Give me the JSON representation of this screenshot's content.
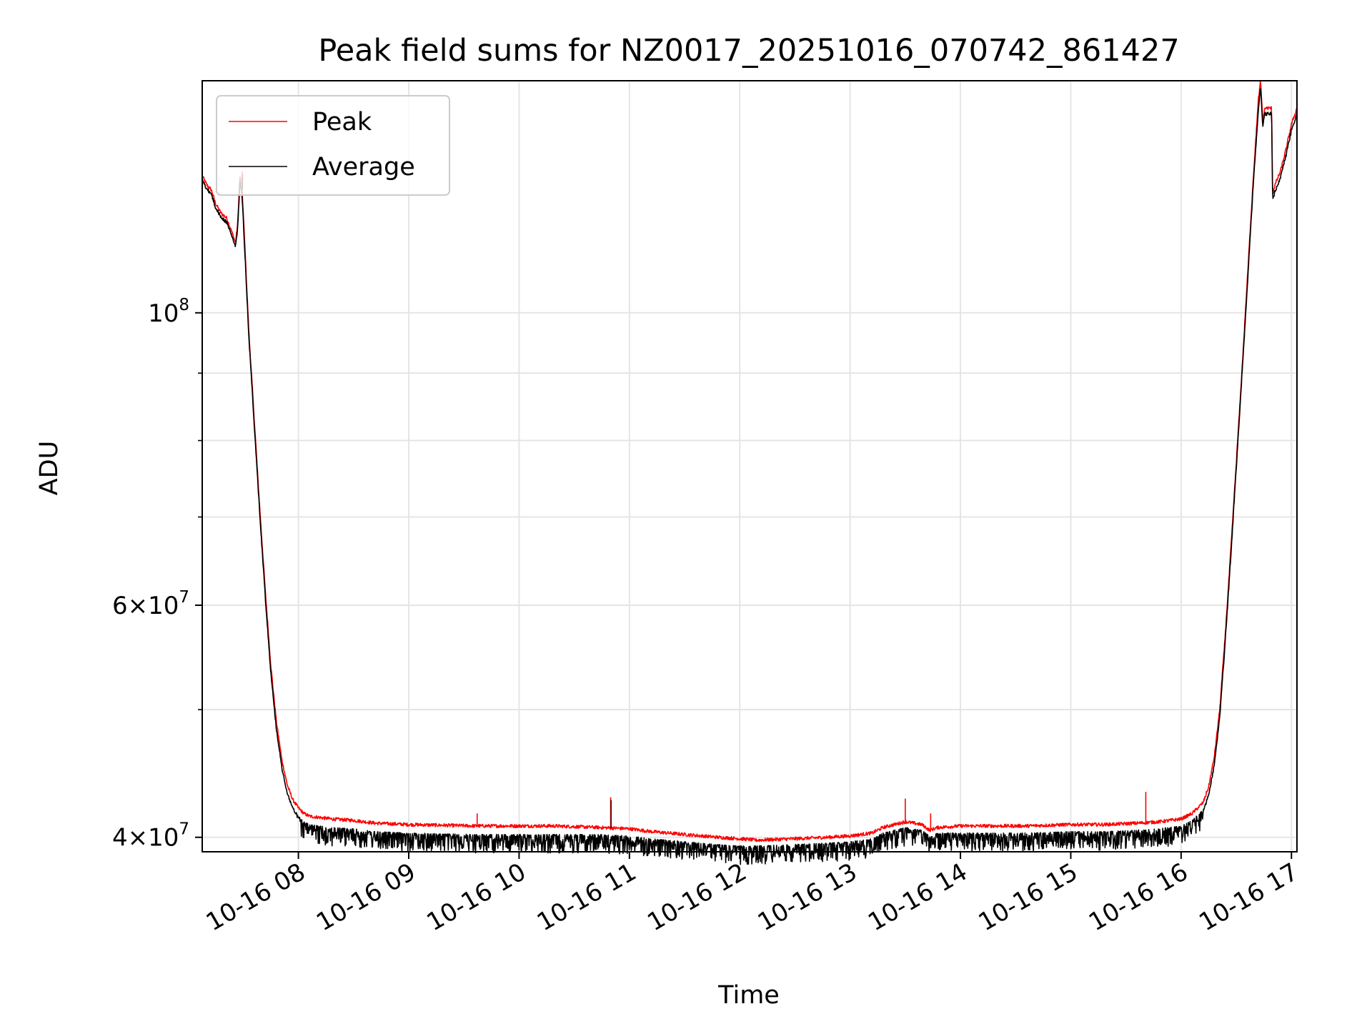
{
  "chart_data": {
    "type": "line",
    "title": "Peak field sums for NZ0017_20251016_070742_861427",
    "xlabel": "Time",
    "ylabel": "ADU",
    "yscale": "log",
    "ylim": [
      39000000,
      150000000
    ],
    "xlim_hours": [
      7.1283,
      17.05
    ],
    "grid": true,
    "legend_location": "upper left",
    "x_ticks": [
      {
        "hour": 8,
        "label": "10-16 08"
      },
      {
        "hour": 9,
        "label": "10-16 09"
      },
      {
        "hour": 10,
        "label": "10-16 10"
      },
      {
        "hour": 11,
        "label": "10-16 11"
      },
      {
        "hour": 12,
        "label": "10-16 12"
      },
      {
        "hour": 13,
        "label": "10-16 13"
      },
      {
        "hour": 14,
        "label": "10-16 14"
      },
      {
        "hour": 15,
        "label": "10-16 15"
      },
      {
        "hour": 16,
        "label": "10-16 16"
      },
      {
        "hour": 17,
        "label": "10-16 17"
      }
    ],
    "y_ticks_major": [
      {
        "value": 40000000,
        "mantissa": "4",
        "exp": "7"
      },
      {
        "value": 60000000,
        "mantissa": "6",
        "exp": "7"
      },
      {
        "value": 100000000,
        "mantissa": "",
        "exp": "8"
      }
    ],
    "y_ticks_minor": [
      50000000,
      70000000,
      80000000,
      90000000
    ],
    "series": [
      {
        "name": "Peak",
        "color": "#ff0000",
        "noise": "low",
        "hours": [
          7.13,
          7.17,
          7.21,
          7.25,
          7.3,
          7.35,
          7.4,
          7.43,
          7.45,
          7.47,
          7.49,
          7.52,
          7.55,
          7.6,
          7.65,
          7.7,
          7.75,
          7.8,
          7.85,
          7.9,
          7.95,
          8.0,
          8.05,
          8.1,
          8.3,
          8.5,
          8.7,
          9.0,
          9.3,
          9.6,
          10.0,
          10.3,
          10.7,
          11.0,
          11.2,
          11.5,
          11.8,
          12.0,
          12.15,
          12.5,
          12.8,
          13.0,
          13.2,
          13.3,
          13.5,
          13.65,
          13.72,
          13.8,
          14.0,
          14.3,
          14.6,
          15.0,
          15.3,
          15.6,
          15.8,
          16.0,
          16.1,
          16.2,
          16.25,
          16.3,
          16.35,
          16.4,
          16.45,
          16.5,
          16.55,
          16.6,
          16.65,
          16.7,
          16.72,
          16.74,
          16.76,
          16.78,
          16.8,
          16.82,
          16.83,
          16.85,
          16.9,
          16.95,
          17.0,
          17.05
        ],
        "values": [
          127000000,
          125000000,
          124000000,
          121000000,
          119000000,
          118000000,
          115000000,
          113000000,
          117000000,
          127000000,
          124000000,
          110000000,
          97000000,
          83000000,
          71000000,
          61500000,
          54000000,
          49000000,
          45800000,
          43800000,
          42700000,
          42100000,
          41700000,
          41500000,
          41300000,
          41200000,
          41000000,
          40900000,
          40850000,
          40800000,
          40800000,
          40800000,
          40700000,
          40600000,
          40400000,
          40200000,
          40000000,
          39900000,
          39800000,
          39900000,
          40000000,
          40100000,
          40300000,
          40700000,
          41100000,
          40900000,
          40500000,
          40700000,
          40800000,
          40800000,
          40800000,
          40900000,
          40900000,
          41000000,
          41100000,
          41300000,
          41700000,
          42500000,
          43700000,
          46000000,
          50000000,
          57000000,
          66000000,
          77000000,
          90000000,
          106000000,
          125000000,
          145000000,
          150000000,
          140000000,
          143000000,
          143000000,
          143000000,
          143000000,
          123000000,
          125000000,
          128000000,
          133000000,
          139000000,
          143000000
        ]
      },
      {
        "name": "Average",
        "color": "#000000",
        "noise": "high",
        "hours": [
          7.13,
          7.17,
          7.21,
          7.25,
          7.3,
          7.35,
          7.4,
          7.43,
          7.45,
          7.47,
          7.49,
          7.52,
          7.55,
          7.6,
          7.65,
          7.7,
          7.75,
          7.8,
          7.85,
          7.9,
          7.95,
          8.0,
          8.05,
          8.1,
          8.3,
          8.5,
          8.7,
          9.0,
          9.3,
          9.6,
          10.0,
          10.3,
          10.7,
          11.0,
          11.2,
          11.5,
          11.8,
          12.0,
          12.15,
          12.5,
          12.8,
          13.0,
          13.2,
          13.3,
          13.5,
          13.65,
          13.72,
          13.8,
          14.0,
          14.3,
          14.6,
          15.0,
          15.3,
          15.6,
          15.8,
          16.0,
          16.1,
          16.2,
          16.25,
          16.3,
          16.35,
          16.4,
          16.45,
          16.5,
          16.55,
          16.6,
          16.65,
          16.7,
          16.72,
          16.74,
          16.76,
          16.78,
          16.8,
          16.82,
          16.83,
          16.85,
          16.9,
          16.95,
          17.0,
          17.05
        ],
        "values": [
          126500000,
          124500000,
          123500000,
          120500000,
          118500000,
          117500000,
          114500000,
          112500000,
          116500000,
          126000000,
          123000000,
          109000000,
          96500000,
          82500000,
          70500000,
          61000000,
          53500000,
          48500000,
          45300000,
          43300000,
          42200000,
          41500000,
          41100000,
          40900000,
          40700000,
          40600000,
          40400000,
          40300000,
          40250000,
          40200000,
          40200000,
          40200000,
          40200000,
          40100000,
          39900000,
          39700000,
          39500000,
          39400000,
          39400000,
          39500000,
          39600000,
          39700000,
          39900000,
          40300000,
          40700000,
          40500000,
          40100000,
          40300000,
          40300000,
          40300000,
          40300000,
          40400000,
          40400000,
          40500000,
          40600000,
          40800000,
          41200000,
          42000000,
          43200000,
          45500000,
          49500000,
          56500000,
          65500000,
          76500000,
          89500000,
          105000000,
          124000000,
          143000000,
          149000000,
          139000000,
          142000000,
          142000000,
          142000000,
          142000000,
          122000000,
          124000000,
          127000000,
          132000000,
          138000000,
          142000000
        ]
      }
    ],
    "spikes": [
      {
        "hour": 7.49,
        "value": 128000000
      },
      {
        "hour": 9.62,
        "value": 41700000
      },
      {
        "hour": 10.83,
        "value": 42900000
      },
      {
        "hour": 13.5,
        "value": 42800000
      },
      {
        "hour": 13.73,
        "value": 41700000
      },
      {
        "hour": 15.68,
        "value": 43300000
      }
    ]
  }
}
